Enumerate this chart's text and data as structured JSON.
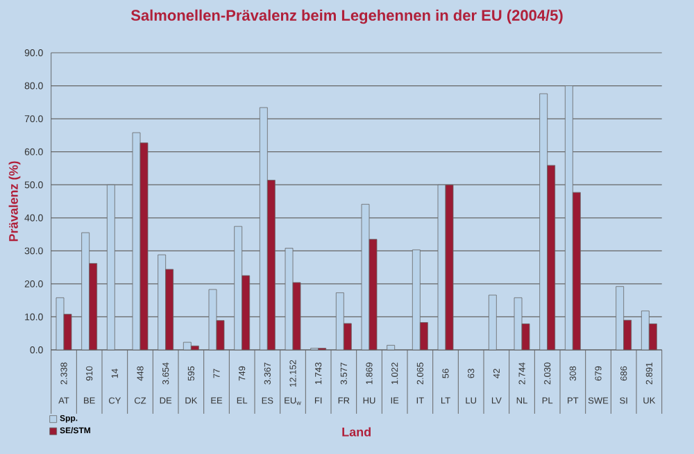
{
  "chart_data": {
    "type": "bar",
    "title": "Salmonellen-Prävalenz beim Legehennen in der EU (2004/5)",
    "xlabel": "Land",
    "ylabel": "Prävalenz (%)",
    "categories": [
      "AT",
      "BE",
      "CY",
      "CZ",
      "DE",
      "DK",
      "EE",
      "EL",
      "ES",
      "EU$_{w}$",
      "FI",
      "FR",
      "HU",
      "IE",
      "IT",
      "LT",
      "LU",
      "LV",
      "NL",
      "PL",
      "PT",
      "SWE",
      "SI",
      "UK"
    ],
    "series": [
      {
        "name": "Spp.",
        "color": "#b9d3ea",
        "values": [
          15.8,
          35.5,
          50.0,
          65.8,
          28.8,
          2.3,
          18.3,
          37.4,
          73.4,
          30.8,
          0.5,
          17.3,
          44.1,
          1.4,
          30.3,
          50.0,
          null,
          16.6,
          15.8,
          77.6,
          80.0,
          null,
          19.2,
          11.8
        ]
      },
      {
        "name": "SE/STM",
        "color": "#9a1a33",
        "values": [
          10.8,
          26.2,
          null,
          62.7,
          24.4,
          1.2,
          8.9,
          22.5,
          51.4,
          20.4,
          0.5,
          8.0,
          33.5,
          null,
          8.3,
          50.0,
          null,
          null,
          7.9,
          55.9,
          47.7,
          null,
          9.0,
          7.9
        ]
      }
    ],
    "annotations": [
      "2.338",
      "910",
      "14",
      "448",
      "3.654",
      "595",
      "77",
      "749",
      "3.367",
      "12.152",
      "1.743",
      "3.577",
      "1.869",
      "1.022",
      "2.065",
      "56",
      "63",
      "42",
      "2.744",
      "2.030",
      "308",
      "679",
      "686",
      "2.891"
    ],
    "ylim": [
      0,
      90
    ],
    "yticks": [
      {
        "value": 0,
        "label": "0.0"
      },
      {
        "value": 10,
        "label": "10.0"
      },
      {
        "value": 20,
        "label": "20.0"
      },
      {
        "value": 30,
        "label": "30.0"
      },
      {
        "value": 40,
        "label": "40.0"
      },
      {
        "value": 50,
        "label": "50.0"
      },
      {
        "value": 60,
        "label": "60.0"
      },
      {
        "value": 70,
        "label": "70.0"
      },
      {
        "value": 80,
        "label": "80.0"
      },
      {
        "value": 90,
        "label": "90.0"
      }
    ],
    "grid": "y",
    "legend": "bottom left"
  }
}
